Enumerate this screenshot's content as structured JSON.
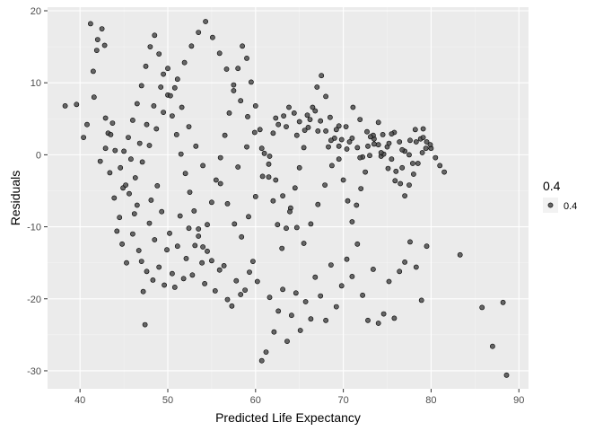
{
  "chart_data": {
    "type": "scatter",
    "title": "",
    "xlabel": "Predicted Life Expectancy",
    "ylabel": "Residuals",
    "xlim": [
      36.3,
      91.1
    ],
    "ylim": [
      -32.5,
      20.5
    ],
    "x_ticks": [
      40,
      50,
      60,
      70,
      80,
      90
    ],
    "y_ticks": [
      20,
      10,
      0,
      -10,
      -20,
      -30
    ],
    "grid": true,
    "legend": {
      "title": "0.4",
      "label": "0.4",
      "position": "right"
    },
    "colors": {
      "panel": "#ebebeb",
      "grid_major": "#ffffff",
      "grid_minor": "#f4f4f4",
      "point_fill": "#4d4d4d",
      "point_stroke": "#000000"
    },
    "series": [
      {
        "points": [
          [
            38.3,
            6.8
          ],
          [
            39.6,
            7.0
          ],
          [
            40.4,
            2.4
          ],
          [
            40.8,
            4.2
          ],
          [
            41.2,
            18.2
          ],
          [
            41.5,
            11.6
          ],
          [
            41.6,
            8.0
          ],
          [
            41.9,
            14.5
          ],
          [
            42.0,
            16.0
          ],
          [
            42.5,
            17.5
          ],
          [
            42.8,
            15.2
          ],
          [
            42.9,
            5.1
          ],
          [
            43.2,
            3.0
          ],
          [
            43.4,
            -2.5
          ],
          [
            43.7,
            4.4
          ],
          [
            43.9,
            -6.0
          ],
          [
            44.2,
            -10.6
          ],
          [
            44.5,
            -8.7
          ],
          [
            44.8,
            -12.4
          ],
          [
            44.9,
            -4.6
          ],
          [
            45.3,
            -15.0
          ],
          [
            45.6,
            -5.4
          ],
          [
            45.8,
            -0.6
          ],
          [
            46.0,
            -11.0
          ],
          [
            46.2,
            -8.2
          ],
          [
            46.5,
            -7.0
          ],
          [
            46.7,
            -13.3
          ],
          [
            47.0,
            -14.8
          ],
          [
            47.2,
            -19.0
          ],
          [
            47.4,
            -23.6
          ],
          [
            47.6,
            -16.2
          ],
          [
            47.9,
            -9.5
          ],
          [
            48.1,
            -6.3
          ],
          [
            48.3,
            -17.4
          ],
          [
            48.5,
            -11.8
          ],
          [
            48.8,
            -4.3
          ],
          [
            49.0,
            -15.6
          ],
          [
            49.3,
            -7.9
          ],
          [
            49.6,
            -18.1
          ],
          [
            49.9,
            -13.2
          ],
          [
            50.2,
            -10.9
          ],
          [
            50.5,
            -16.5
          ],
          [
            50.8,
            -18.4
          ],
          [
            51.1,
            -12.7
          ],
          [
            51.4,
            -8.5
          ],
          [
            51.8,
            -17.2
          ],
          [
            52.1,
            -14.4
          ],
          [
            52.4,
            -10.2
          ],
          [
            52.8,
            -16.7
          ],
          [
            53.1,
            -12.6
          ],
          [
            53.5,
            -11.3
          ],
          [
            53.9,
            -15.0
          ],
          [
            54.2,
            -17.9
          ],
          [
            54.5,
            -13.4
          ],
          [
            55.0,
            -14.7
          ],
          [
            55.4,
            -18.9
          ],
          [
            55.9,
            -16.0
          ],
          [
            56.4,
            -15.4
          ],
          [
            56.8,
            -20.1
          ],
          [
            57.3,
            -21.0
          ],
          [
            57.8,
            -17.5
          ],
          [
            58.3,
            -19.4
          ],
          [
            58.8,
            -18.8
          ],
          [
            59.3,
            -16.3
          ],
          [
            59.7,
            -14.8
          ],
          [
            60.2,
            -17.6
          ],
          [
            60.7,
            -28.6
          ],
          [
            61.2,
            -27.4
          ],
          [
            61.6,
            -19.8
          ],
          [
            62.1,
            -24.6
          ],
          [
            62.6,
            -21.7
          ],
          [
            63.1,
            -18.7
          ],
          [
            63.6,
            -25.9
          ],
          [
            64.1,
            -22.3
          ],
          [
            64.6,
            -19.2
          ],
          [
            65.1,
            -24.4
          ],
          [
            65.7,
            -20.4
          ],
          [
            66.3,
            -22.8
          ],
          [
            66.8,
            -17.0
          ],
          [
            67.4,
            -19.6
          ],
          [
            68.0,
            -23.0
          ],
          [
            68.6,
            -15.3
          ],
          [
            69.2,
            -21.1
          ],
          [
            69.8,
            -18.2
          ],
          [
            70.4,
            -14.5
          ],
          [
            71.0,
            -16.9
          ],
          [
            71.6,
            -12.4
          ],
          [
            72.2,
            -19.5
          ],
          [
            72.8,
            -23.0
          ],
          [
            73.4,
            -15.9
          ],
          [
            74.0,
            -23.4
          ],
          [
            74.6,
            -22.1
          ],
          [
            75.2,
            -17.6
          ],
          [
            75.8,
            -22.7
          ],
          [
            76.4,
            -16.2
          ],
          [
            77.0,
            -14.9
          ],
          [
            77.6,
            -12.1
          ],
          [
            78.3,
            -15.6
          ],
          [
            78.9,
            -20.2
          ],
          [
            79.5,
            -12.7
          ],
          [
            83.3,
            -13.9
          ],
          [
            85.8,
            -21.2
          ],
          [
            87.0,
            -26.6
          ],
          [
            88.2,
            -20.5
          ],
          [
            88.6,
            -30.6
          ],
          [
            45.0,
            0.5
          ],
          [
            45.5,
            2.4
          ],
          [
            46.0,
            4.8
          ],
          [
            46.5,
            7.1
          ],
          [
            47.0,
            9.6
          ],
          [
            47.5,
            12.3
          ],
          [
            48.0,
            15.0
          ],
          [
            48.5,
            16.6
          ],
          [
            49.0,
            14.0
          ],
          [
            49.5,
            11.2
          ],
          [
            50.0,
            8.3
          ],
          [
            50.5,
            5.4
          ],
          [
            51.0,
            2.8
          ],
          [
            51.5,
            0.1
          ],
          [
            52.0,
            -2.6
          ],
          [
            52.5,
            -5.2
          ],
          [
            53.0,
            -7.8
          ],
          [
            53.5,
            -10.3
          ],
          [
            54.0,
            -12.8
          ],
          [
            54.5,
            -9.7
          ],
          [
            55.0,
            -6.6
          ],
          [
            55.5,
            -3.5
          ],
          [
            56.0,
            -0.4
          ],
          [
            56.5,
            2.7
          ],
          [
            57.0,
            5.8
          ],
          [
            57.5,
            8.9
          ],
          [
            58.0,
            12.0
          ],
          [
            58.5,
            15.1
          ],
          [
            59.0,
            13.4
          ],
          [
            59.5,
            10.1
          ],
          [
            60.0,
            6.8
          ],
          [
            60.5,
            3.5
          ],
          [
            61.0,
            0.2
          ],
          [
            61.5,
            -3.1
          ],
          [
            62.0,
            -6.4
          ],
          [
            62.5,
            -9.7
          ],
          [
            63.0,
            -13.0
          ],
          [
            63.5,
            -10.2
          ],
          [
            64.0,
            -7.4
          ],
          [
            64.5,
            -4.6
          ],
          [
            65.0,
            -1.8
          ],
          [
            65.5,
            1.0
          ],
          [
            66.0,
            3.8
          ],
          [
            66.5,
            6.6
          ],
          [
            67.0,
            9.4
          ],
          [
            67.5,
            11.0
          ],
          [
            68.0,
            8.1
          ],
          [
            68.5,
            5.2
          ],
          [
            69.0,
            2.3
          ],
          [
            69.5,
            -0.6
          ],
          [
            70.0,
            -3.5
          ],
          [
            70.5,
            -6.4
          ],
          [
            71.0,
            -9.3
          ],
          [
            71.5,
            -7.0
          ],
          [
            72.0,
            -4.7
          ],
          [
            72.5,
            -2.4
          ],
          [
            73.0,
            -0.1
          ],
          [
            73.5,
            2.2
          ],
          [
            74.0,
            4.5
          ],
          [
            74.5,
            2.8
          ],
          [
            75.0,
            1.1
          ],
          [
            75.5,
            -0.6
          ],
          [
            76.0,
            -2.3
          ],
          [
            76.5,
            -4.0
          ],
          [
            77.0,
            -5.7
          ],
          [
            77.5,
            -4.2
          ],
          [
            78.0,
            -2.7
          ],
          [
            78.5,
            -1.2
          ],
          [
            79.0,
            0.3
          ],
          [
            79.5,
            1.8
          ],
          [
            80.0,
            0.9
          ],
          [
            80.5,
            -0.4
          ],
          [
            81.0,
            -1.5
          ],
          [
            81.5,
            -2.4
          ],
          [
            46.3,
            -3.2
          ],
          [
            47.1,
            -1.0
          ],
          [
            47.9,
            1.3
          ],
          [
            48.7,
            3.6
          ],
          [
            49.5,
            5.9
          ],
          [
            50.3,
            8.2
          ],
          [
            51.1,
            10.5
          ],
          [
            51.9,
            12.8
          ],
          [
            52.7,
            15.1
          ],
          [
            53.5,
            17.0
          ],
          [
            54.3,
            18.5
          ],
          [
            55.1,
            16.3
          ],
          [
            55.9,
            14.1
          ],
          [
            56.7,
            11.9
          ],
          [
            57.5,
            9.7
          ],
          [
            58.3,
            7.5
          ],
          [
            59.1,
            5.3
          ],
          [
            59.9,
            3.1
          ],
          [
            60.7,
            0.9
          ],
          [
            61.5,
            -1.3
          ],
          [
            62.3,
            -3.5
          ],
          [
            63.1,
            -5.7
          ],
          [
            63.9,
            -7.9
          ],
          [
            64.7,
            -10.1
          ],
          [
            65.5,
            -12.3
          ],
          [
            66.3,
            -9.6
          ],
          [
            67.1,
            -6.9
          ],
          [
            67.9,
            -4.2
          ],
          [
            68.7,
            -1.5
          ],
          [
            69.5,
            1.2
          ],
          [
            70.3,
            3.9
          ],
          [
            71.1,
            6.6
          ],
          [
            71.9,
            4.9
          ],
          [
            72.7,
            3.2
          ],
          [
            73.5,
            1.5
          ],
          [
            74.3,
            -0.2
          ],
          [
            75.1,
            -1.9
          ],
          [
            75.9,
            -3.6
          ],
          [
            76.7,
            -1.8
          ],
          [
            77.5,
            0.0
          ],
          [
            78.3,
            1.8
          ],
          [
            79.1,
            3.6
          ],
          [
            79.9,
            1.4
          ],
          [
            62.0,
            3.0
          ],
          [
            62.6,
            4.2
          ],
          [
            63.2,
            5.4
          ],
          [
            63.8,
            6.6
          ],
          [
            64.4,
            5.8
          ],
          [
            65.0,
            4.6
          ],
          [
            65.6,
            3.4
          ],
          [
            66.2,
            4.9
          ],
          [
            66.8,
            6.1
          ],
          [
            67.4,
            4.7
          ],
          [
            68.0,
            3.3
          ],
          [
            68.6,
            2.0
          ],
          [
            69.2,
            3.5
          ],
          [
            69.8,
            2.1
          ],
          [
            70.4,
            0.8
          ],
          [
            71.0,
            2.3
          ],
          [
            71.6,
            1.0
          ],
          [
            72.2,
            -0.3
          ],
          [
            72.8,
            1.2
          ],
          [
            73.4,
            2.7
          ],
          [
            74.0,
            1.4
          ],
          [
            74.6,
            0.1
          ],
          [
            75.2,
            1.6
          ],
          [
            75.8,
            3.1
          ],
          [
            76.4,
            1.8
          ],
          [
            77.0,
            0.5
          ],
          [
            77.6,
            2.0
          ],
          [
            78.2,
            3.5
          ],
          [
            78.8,
            2.2
          ],
          [
            79.4,
            0.9
          ],
          [
            62.3,
            5.1
          ],
          [
            63.5,
            3.9
          ],
          [
            64.7,
            2.7
          ],
          [
            65.9,
            5.5
          ],
          [
            67.1,
            3.3
          ],
          [
            68.3,
            1.1
          ],
          [
            69.5,
            4.0
          ],
          [
            70.7,
            1.8
          ],
          [
            71.9,
            -0.4
          ],
          [
            73.1,
            2.5
          ],
          [
            74.3,
            0.3
          ],
          [
            75.5,
            2.9
          ],
          [
            76.7,
            0.7
          ],
          [
            77.9,
            -1.2
          ],
          [
            79.1,
            2.4
          ],
          [
            56.0,
            -4.0
          ],
          [
            56.8,
            -6.8
          ],
          [
            57.6,
            -9.6
          ],
          [
            58.4,
            -11.4
          ],
          [
            59.2,
            -8.6
          ],
          [
            60.0,
            -5.8
          ],
          [
            60.8,
            -3.0
          ],
          [
            61.6,
            -0.2
          ],
          [
            58.0,
            -1.7
          ],
          [
            59.0,
            1.1
          ],
          [
            54.0,
            -1.5
          ],
          [
            53.2,
            1.2
          ],
          [
            52.4,
            3.9
          ],
          [
            51.6,
            6.6
          ],
          [
            50.8,
            9.3
          ],
          [
            50.0,
            12.0
          ],
          [
            49.2,
            9.4
          ],
          [
            48.4,
            6.8
          ],
          [
            47.6,
            4.2
          ],
          [
            46.8,
            1.6
          ],
          [
            45.2,
            -4.2
          ],
          [
            44.6,
            -1.8
          ],
          [
            44.0,
            0.6
          ],
          [
            43.5,
            2.8
          ],
          [
            42.9,
            0.9
          ],
          [
            42.3,
            -0.9
          ]
        ]
      }
    ]
  }
}
